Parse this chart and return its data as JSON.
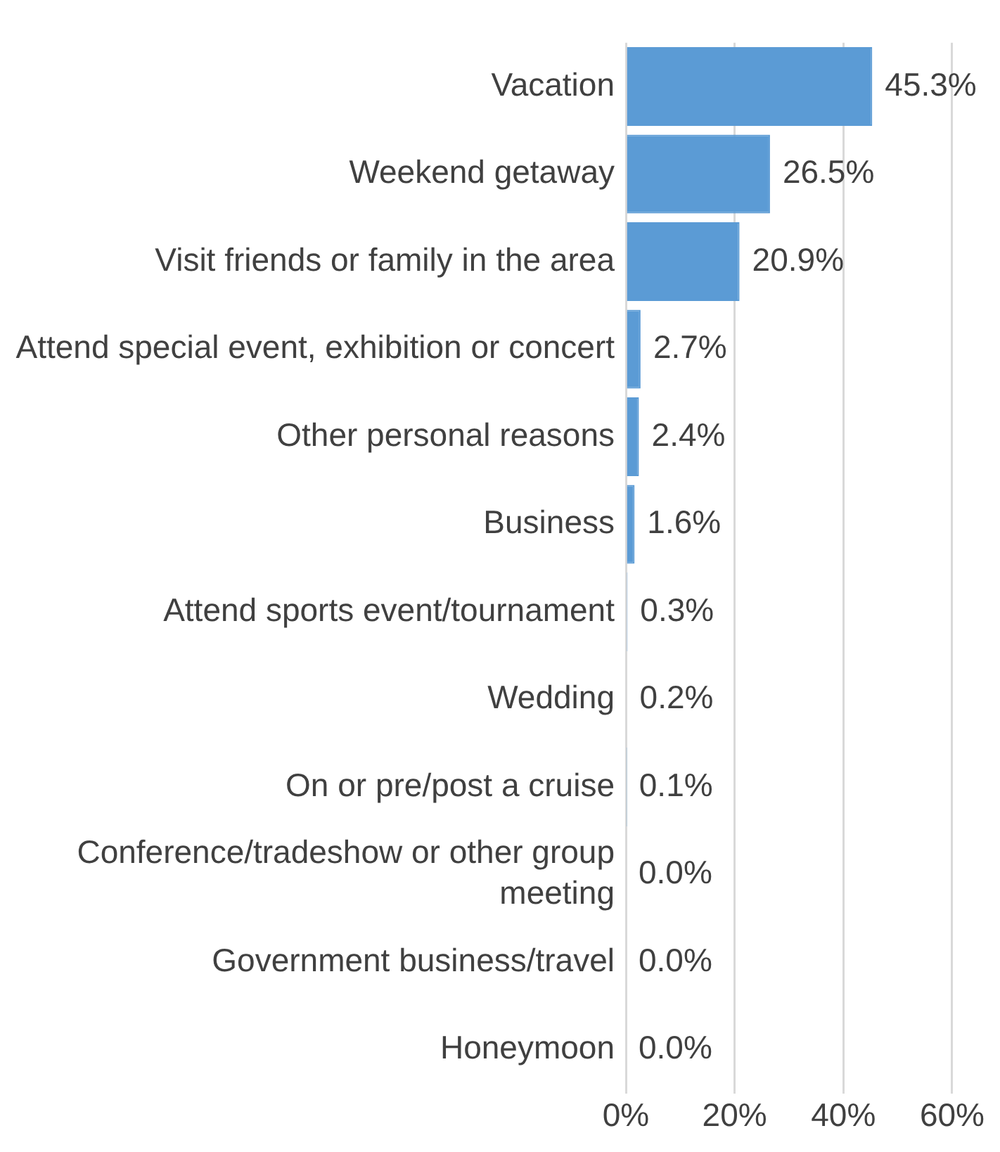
{
  "chart_data": {
    "type": "bar",
    "orientation": "horizontal",
    "categories": [
      "Vacation",
      "Weekend getaway",
      "Visit friends or family in the area",
      "Attend special event, exhibition or concert",
      "Other personal reasons",
      "Business",
      "Attend sports event/tournament",
      "Wedding",
      "On or pre/post a cruise",
      "Conference/tradeshow or other group meeting",
      "Government business/travel",
      "Honeymoon"
    ],
    "values": [
      45.3,
      26.5,
      20.9,
      2.7,
      2.4,
      1.6,
      0.3,
      0.2,
      0.1,
      0.0,
      0.0,
      0.0
    ],
    "value_labels": [
      "45.3%",
      "26.5%",
      "20.9%",
      "2.7%",
      "2.4%",
      "1.6%",
      "0.3%",
      "0.2%",
      "0.1%",
      "0.0%",
      "0.0%",
      "0.0%"
    ],
    "color": "#5b9bd5",
    "xlim": [
      0,
      60
    ],
    "xticks": [
      {
        "value": 0,
        "label": "0%"
      },
      {
        "value": 20,
        "label": "20%"
      },
      {
        "value": 40,
        "label": "40%"
      },
      {
        "value": 60,
        "label": "60%"
      }
    ],
    "grid": "x",
    "legend": false
  }
}
